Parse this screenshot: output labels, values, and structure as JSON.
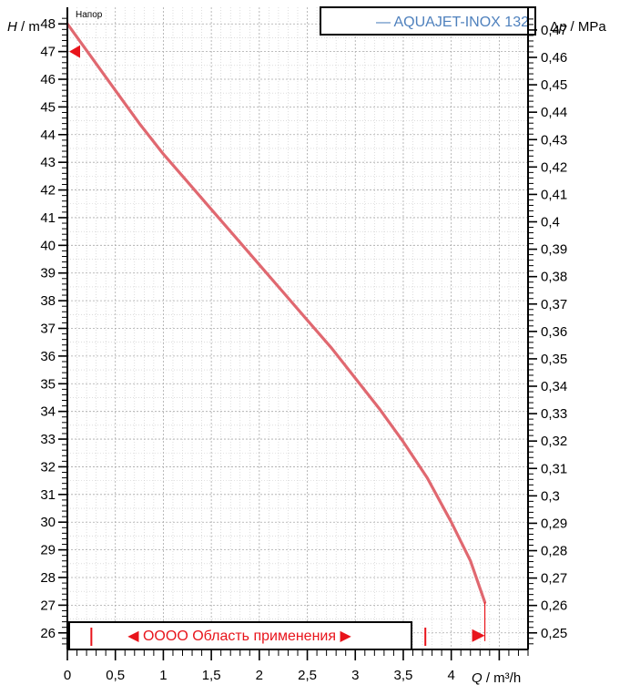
{
  "chart_data": {
    "type": "line",
    "title": "Напор",
    "legend": "— AQUAJET-INOX 132",
    "legend_position": "top-right",
    "ylabel_italic": "H",
    "ylabel_unit": " / m",
    "y2label_symbol": "Δ",
    "y2label_italic": "p",
    "y2label_unit": " / MPa",
    "xlabel_italic": "Q",
    "xlabel_unit": " / m³/h",
    "x_ticks": [
      "0",
      "0,5",
      "1",
      "1,5",
      "2",
      "2,5",
      "3",
      "3,5",
      "4"
    ],
    "x_tick_values": [
      0,
      0.5,
      1,
      1.5,
      2,
      2.5,
      3,
      3.5,
      4
    ],
    "y_ticks": [
      "26",
      "27",
      "28",
      "29",
      "30",
      "31",
      "32",
      "33",
      "34",
      "35",
      "36",
      "37",
      "38",
      "39",
      "40",
      "41",
      "42",
      "43",
      "44",
      "45",
      "46",
      "47",
      "48"
    ],
    "y_tick_values": [
      26,
      27,
      28,
      29,
      30,
      31,
      32,
      33,
      34,
      35,
      36,
      37,
      38,
      39,
      40,
      41,
      42,
      43,
      44,
      45,
      46,
      47,
      48
    ],
    "y2_ticks": [
      "0,25",
      "0,26",
      "0,27",
      "0,28",
      "0,29",
      "0,3",
      "0,31",
      "0,32",
      "0,33",
      "0,34",
      "0,35",
      "0,36",
      "0,37",
      "0,38",
      "0,39",
      "0,4",
      "0,41",
      "0,42",
      "0,43",
      "0,44",
      "0,45",
      "0,46",
      "0,47"
    ],
    "y2_tick_values": [
      0.25,
      0.26,
      0.27,
      0.28,
      0.29,
      0.3,
      0.31,
      0.32,
      0.33,
      0.34,
      0.35,
      0.36,
      0.37,
      0.38,
      0.39,
      0.4,
      0.41,
      0.42,
      0.43,
      0.44,
      0.45,
      0.46,
      0.47
    ],
    "xlim": [
      0,
      4.8
    ],
    "ylim": [
      25.4,
      48.6
    ],
    "grid": true,
    "series": [
      {
        "name": "AQUAJET-INOX 132",
        "color": "#e06870",
        "x": [
          0,
          0.25,
          0.5,
          0.75,
          1.0,
          1.25,
          1.5,
          1.75,
          2.0,
          2.25,
          2.5,
          2.75,
          3.0,
          3.25,
          3.5,
          3.75,
          4.0,
          4.2,
          4.35
        ],
        "y": [
          48.0,
          46.8,
          45.6,
          44.4,
          43.3,
          42.3,
          41.3,
          40.3,
          39.3,
          38.3,
          37.3,
          36.3,
          35.2,
          34.1,
          32.9,
          31.6,
          30.0,
          28.6,
          27.1
        ]
      }
    ],
    "markers": {
      "left_marker_y": 47.0,
      "right_marker_x": 4.35,
      "right_marker_y": 25.9,
      "range_label": "◀ OOOO Область применения ▶",
      "range_start_x": 0.25,
      "range_end_x": 3.73
    }
  },
  "colors": {
    "curve": "#e06870",
    "marker": "#e8141b",
    "legend_text": "#4f81bd",
    "grid": "#b5b5b5"
  }
}
